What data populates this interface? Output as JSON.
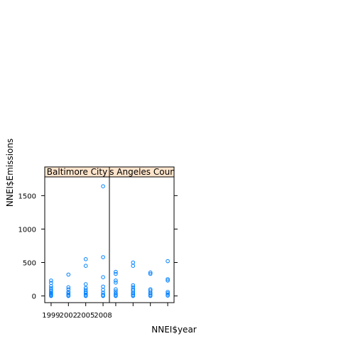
{
  "chart_data": {
    "type": "scatter",
    "xlabel": "NNEI$year",
    "ylabel": "NNEI$Emissions",
    "x_ticks": [
      1999,
      2002,
      2005,
      2008
    ],
    "y_ticks": [
      0,
      500,
      1000,
      1500
    ],
    "ylim": [
      -100,
      1780
    ],
    "xlim": [
      1997.9,
      2009.1
    ],
    "point_color": "#0080ff",
    "strip_color": "#ffe5cc",
    "panels": [
      {
        "name": "Baltimore City",
        "points": [
          {
            "x": 1999,
            "y": 230
          },
          {
            "x": 1999,
            "y": 195
          },
          {
            "x": 1999,
            "y": 150
          },
          {
            "x": 1999,
            "y": 120
          },
          {
            "x": 1999,
            "y": 90
          },
          {
            "x": 1999,
            "y": 70
          },
          {
            "x": 1999,
            "y": 50
          },
          {
            "x": 1999,
            "y": 35
          },
          {
            "x": 1999,
            "y": 20
          },
          {
            "x": 1999,
            "y": 8
          },
          {
            "x": 1999,
            "y": 0
          },
          {
            "x": 2002,
            "y": 320
          },
          {
            "x": 2002,
            "y": 130
          },
          {
            "x": 2002,
            "y": 100
          },
          {
            "x": 2002,
            "y": 60
          },
          {
            "x": 2002,
            "y": 40
          },
          {
            "x": 2002,
            "y": 20
          },
          {
            "x": 2002,
            "y": 5
          },
          {
            "x": 2002,
            "y": 0
          },
          {
            "x": 2005,
            "y": 550
          },
          {
            "x": 2005,
            "y": 450
          },
          {
            "x": 2005,
            "y": 175
          },
          {
            "x": 2005,
            "y": 120
          },
          {
            "x": 2005,
            "y": 90
          },
          {
            "x": 2005,
            "y": 60
          },
          {
            "x": 2005,
            "y": 40
          },
          {
            "x": 2005,
            "y": 20
          },
          {
            "x": 2005,
            "y": 5
          },
          {
            "x": 2005,
            "y": 0
          },
          {
            "x": 2008,
            "y": 1640
          },
          {
            "x": 2008,
            "y": 580
          },
          {
            "x": 2008,
            "y": 280
          },
          {
            "x": 2008,
            "y": 140
          },
          {
            "x": 2008,
            "y": 90
          },
          {
            "x": 2008,
            "y": 50
          },
          {
            "x": 2008,
            "y": 20
          },
          {
            "x": 2008,
            "y": 5
          },
          {
            "x": 2008,
            "y": 0
          }
        ]
      },
      {
        "name": "Los Angeles County",
        "points": [
          {
            "x": 1999,
            "y": 360
          },
          {
            "x": 1999,
            "y": 330
          },
          {
            "x": 1999,
            "y": 230
          },
          {
            "x": 1999,
            "y": 200
          },
          {
            "x": 1999,
            "y": 100
          },
          {
            "x": 1999,
            "y": 70
          },
          {
            "x": 1999,
            "y": 40
          },
          {
            "x": 1999,
            "y": 20
          },
          {
            "x": 1999,
            "y": 5
          },
          {
            "x": 1999,
            "y": 0
          },
          {
            "x": 2002,
            "y": 500
          },
          {
            "x": 2002,
            "y": 450
          },
          {
            "x": 2002,
            "y": 160
          },
          {
            "x": 2002,
            "y": 130
          },
          {
            "x": 2002,
            "y": 100
          },
          {
            "x": 2002,
            "y": 80
          },
          {
            "x": 2002,
            "y": 50
          },
          {
            "x": 2002,
            "y": 30
          },
          {
            "x": 2002,
            "y": 10
          },
          {
            "x": 2002,
            "y": 0
          },
          {
            "x": 2005,
            "y": 350
          },
          {
            "x": 2005,
            "y": 330
          },
          {
            "x": 2005,
            "y": 100
          },
          {
            "x": 2005,
            "y": 80
          },
          {
            "x": 2005,
            "y": 50
          },
          {
            "x": 2005,
            "y": 30
          },
          {
            "x": 2005,
            "y": 10
          },
          {
            "x": 2005,
            "y": 0
          },
          {
            "x": 2008,
            "y": 520
          },
          {
            "x": 2008,
            "y": 250
          },
          {
            "x": 2008,
            "y": 230
          },
          {
            "x": 2008,
            "y": 60
          },
          {
            "x": 2008,
            "y": 40
          },
          {
            "x": 2008,
            "y": 20
          },
          {
            "x": 2008,
            "y": 5
          }
        ]
      }
    ]
  }
}
